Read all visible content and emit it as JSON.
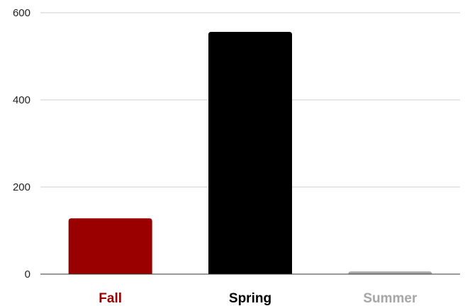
{
  "chart_data": {
    "type": "bar",
    "title": "",
    "xlabel": "",
    "ylabel": "",
    "categories": [
      "Fall",
      "Spring",
      "Summer"
    ],
    "values": [
      128,
      556,
      6
    ],
    "colors": [
      "#9b0000",
      "#000000",
      "#a6a6a6"
    ],
    "ylim": [
      0,
      600
    ],
    "yticks": [
      0,
      200,
      400,
      600
    ],
    "ytick_labels": [
      "0",
      "200",
      "400",
      "600"
    ],
    "grid": true,
    "legend": "none"
  }
}
